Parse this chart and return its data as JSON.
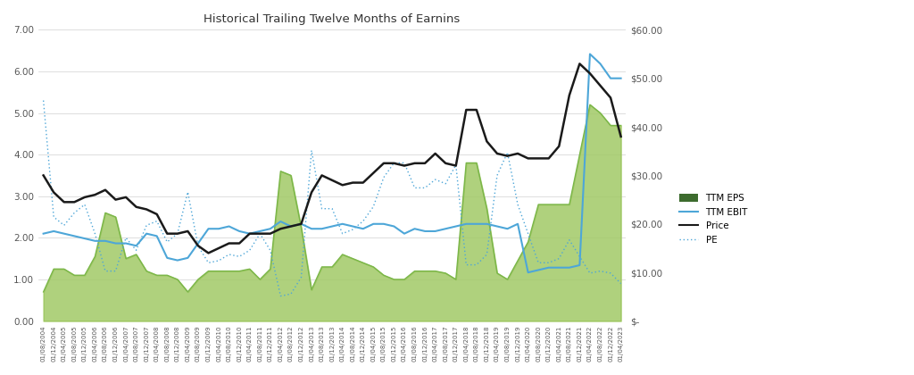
{
  "title": "Historical Trailing Twelve Months of Earnins",
  "left_ylim": [
    0,
    7.0
  ],
  "right_ylim": [
    0,
    60.0
  ],
  "left_yticks": [
    0.0,
    1.0,
    2.0,
    3.0,
    4.0,
    5.0,
    6.0,
    7.0
  ],
  "right_yticks": [
    0,
    10,
    20,
    30,
    40,
    50,
    60
  ],
  "right_yticklabels": [
    "$-",
    "$10.00",
    "$20.00",
    "$30.00",
    "$40.00",
    "$50.00",
    "$60.00"
  ],
  "left_yticklabels": [
    "0.00",
    "1.00",
    "2.00",
    "3.00",
    "4.00",
    "5.00",
    "6.00",
    "7.00"
  ],
  "eps_color": "#7ab648",
  "eps_fill_color": "#92c050",
  "ebit_color": "#4da6d8",
  "price_color": "#1a1a1a",
  "pe_color": "#4da6d8",
  "legend_eps_color": "#3d6b2e",
  "background_color": "#ffffff",
  "dates": [
    "01/08/2004",
    "01/12/2004",
    "01/04/2005",
    "01/08/2005",
    "01/12/2005",
    "01/04/2006",
    "01/08/2006",
    "01/12/2006",
    "01/04/2007",
    "01/08/2007",
    "01/12/2007",
    "01/04/2008",
    "01/08/2008",
    "01/12/2008",
    "01/04/2009",
    "01/08/2009",
    "01/12/2009",
    "01/04/2010",
    "01/08/2010",
    "01/12/2010",
    "01/04/2011",
    "01/08/2011",
    "01/12/2011",
    "01/04/2012",
    "01/08/2012",
    "01/12/2012",
    "01/04/2013",
    "01/08/2013",
    "01/12/2013",
    "01/04/2014",
    "01/08/2014",
    "01/12/2014",
    "01/04/2015",
    "01/08/2015",
    "01/12/2015",
    "01/04/2016",
    "01/08/2016",
    "01/12/2016",
    "01/04/2017",
    "01/08/2017",
    "01/12/2017",
    "01/04/2018",
    "01/08/2018",
    "01/12/2018",
    "01/04/2019",
    "01/08/2019",
    "01/12/2019",
    "01/04/2020",
    "01/08/2020",
    "01/12/2020",
    "01/04/2021",
    "01/08/2021",
    "01/12/2021",
    "01/04/2022",
    "01/08/2022",
    "01/12/2022",
    "01/04/2023"
  ],
  "eps_left": [
    0.7,
    1.25,
    1.25,
    1.1,
    1.1,
    1.55,
    2.6,
    2.5,
    1.5,
    1.6,
    1.2,
    1.1,
    1.1,
    1.0,
    0.7,
    1.0,
    1.2,
    1.2,
    1.2,
    1.2,
    1.25,
    1.0,
    1.25,
    3.6,
    3.5,
    2.25,
    0.75,
    1.3,
    1.3,
    1.6,
    1.5,
    1.4,
    1.3,
    1.1,
    1.0,
    1.0,
    1.2,
    1.2,
    1.2,
    1.15,
    1.0,
    3.8,
    3.8,
    2.7,
    1.15,
    1.0,
    1.45,
    1.9,
    2.8,
    2.8,
    2.8,
    2.8,
    4.0,
    5.2,
    5.0,
    4.7,
    4.7
  ],
  "ebit_right": [
    18.0,
    18.5,
    18.0,
    17.5,
    17.0,
    16.5,
    16.5,
    16.0,
    16.0,
    15.5,
    18.0,
    17.5,
    13.0,
    12.5,
    13.0,
    16.0,
    19.0,
    19.0,
    19.5,
    18.5,
    18.0,
    18.5,
    19.0,
    20.5,
    19.5,
    20.0,
    19.0,
    19.0,
    19.5,
    20.0,
    19.5,
    19.0,
    20.0,
    20.0,
    19.5,
    18.0,
    19.0,
    18.5,
    18.5,
    19.0,
    19.5,
    20.0,
    20.0,
    20.0,
    19.5,
    19.0,
    20.0,
    10.0,
    10.5,
    11.0,
    11.0,
    11.0,
    11.5,
    55.0,
    53.0,
    50.0,
    50.0
  ],
  "price_right": [
    30.0,
    26.5,
    24.5,
    24.5,
    25.5,
    26.0,
    27.0,
    25.0,
    25.5,
    23.5,
    23.0,
    22.0,
    18.0,
    18.0,
    18.5,
    15.5,
    14.0,
    15.0,
    16.0,
    16.0,
    18.0,
    18.0,
    18.0,
    19.0,
    19.5,
    20.0,
    26.5,
    30.0,
    29.0,
    28.0,
    28.5,
    28.5,
    30.5,
    32.5,
    32.5,
    32.0,
    32.5,
    32.5,
    34.5,
    32.5,
    32.0,
    43.5,
    43.5,
    37.0,
    34.5,
    34.0,
    34.5,
    33.5,
    33.5,
    33.5,
    36.0,
    46.5,
    53.0,
    51.0,
    48.5,
    46.0,
    38.0
  ],
  "pe_left": [
    5.3,
    2.5,
    2.3,
    2.6,
    2.8,
    2.1,
    1.2,
    1.2,
    2.0,
    1.7,
    2.3,
    2.4,
    1.9,
    2.1,
    3.1,
    1.8,
    1.4,
    1.45,
    1.6,
    1.55,
    1.7,
    2.1,
    1.7,
    0.6,
    0.65,
    1.05,
    4.1,
    2.7,
    2.7,
    2.1,
    2.2,
    2.4,
    2.75,
    3.45,
    3.8,
    3.8,
    3.2,
    3.2,
    3.4,
    3.3,
    3.75,
    1.35,
    1.35,
    1.6,
    3.5,
    4.05,
    2.8,
    2.1,
    1.4,
    1.4,
    1.5,
    1.95,
    1.55,
    1.15,
    1.2,
    1.15,
    0.9
  ]
}
